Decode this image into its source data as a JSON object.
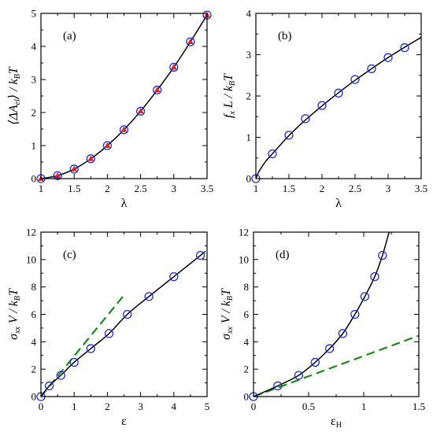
{
  "colors": {
    "axis": "#000000",
    "fit_line": "#000000",
    "marker_edge_circle": "#1f2fcc",
    "marker_fill_triangle": "#e0202a",
    "dashed_line": "#1a8a1a"
  },
  "chart_data": [
    {
      "id": "a",
      "type": "scatter",
      "panel_label": "(a)",
      "ylabel_parts": [
        "⟨ΔA",
        "el",
        "⟩ / k",
        "B",
        "T"
      ],
      "xlabel": "λ",
      "xlim": [
        1,
        3.5
      ],
      "ylim": [
        0,
        5
      ],
      "xticks": [
        1,
        1.5,
        2,
        2.5,
        3,
        3.5
      ],
      "yticks": [
        0,
        1,
        2,
        3,
        4,
        5
      ],
      "grid": false,
      "markers": [
        "circle-open",
        "triangle-filled"
      ],
      "series": [
        {
          "x": [
            1,
            1.25,
            1.5,
            1.75,
            2,
            2.25,
            2.5,
            2.75,
            3,
            3.25,
            3.5
          ],
          "y": [
            0,
            0.09,
            0.29,
            0.6,
            1.0,
            1.48,
            2.04,
            2.68,
            3.37,
            4.14,
            4.95
          ]
        }
      ],
      "fit_curve": {
        "x": [
          1,
          1.25,
          1.5,
          1.75,
          2,
          2.25,
          2.5,
          2.75,
          3,
          3.25,
          3.5
        ],
        "y": [
          0,
          0.09,
          0.29,
          0.6,
          1.0,
          1.48,
          2.04,
          2.68,
          3.37,
          4.14,
          4.95
        ]
      }
    },
    {
      "id": "b",
      "type": "scatter",
      "panel_label": "(b)",
      "ylabel_parts": [
        "f",
        "x",
        " L / k",
        "B",
        "T"
      ],
      "xlabel": "λ",
      "xlim": [
        1,
        3.5
      ],
      "ylim": [
        0,
        4
      ],
      "xticks": [
        1,
        1.5,
        2,
        2.5,
        3,
        3.5
      ],
      "yticks": [
        0,
        1,
        2,
        3,
        4
      ],
      "grid": false,
      "markers": [
        "circle-open"
      ],
      "series": [
        {
          "x": [
            1,
            1.25,
            1.5,
            1.75,
            2,
            2.25,
            2.5,
            2.75,
            3,
            3.25
          ],
          "y": [
            0,
            0.6,
            1.05,
            1.45,
            1.77,
            2.07,
            2.4,
            2.66,
            2.93,
            3.17
          ]
        }
      ],
      "fit_curve": {
        "x": [
          1,
          1.05,
          1.15,
          1.25,
          1.5,
          1.75,
          2,
          2.25,
          2.5,
          2.75,
          3,
          3.25,
          3.5
        ],
        "y": [
          0,
          0.18,
          0.42,
          0.6,
          1.04,
          1.42,
          1.76,
          2.08,
          2.38,
          2.66,
          2.93,
          3.18,
          3.42
        ]
      }
    },
    {
      "id": "c",
      "type": "scatter",
      "panel_label": "(c)",
      "ylabel_parts": [
        "σ",
        "xx",
        " V / k",
        "B",
        "T"
      ],
      "xlabel": "ε",
      "xlim": [
        0,
        5
      ],
      "ylim": [
        0,
        12
      ],
      "xticks": [
        0,
        1,
        2,
        3,
        4,
        5
      ],
      "yticks": [
        0,
        2,
        4,
        6,
        8,
        10,
        12
      ],
      "grid": false,
      "markers": [
        "circle-open"
      ],
      "series": [
        {
          "x": [
            0,
            0.25,
            0.6,
            1.0,
            1.5,
            2.05,
            2.6,
            3.25,
            4.0,
            4.8
          ],
          "y": [
            0,
            0.78,
            1.55,
            2.5,
            3.5,
            4.6,
            6.0,
            7.3,
            8.75,
            10.3
          ]
        }
      ],
      "fit_curve": {
        "x": [
          0,
          0.25,
          0.6,
          1.0,
          1.5,
          2.05,
          2.6,
          3.25,
          4.0,
          4.8,
          4.95
        ],
        "y": [
          0,
          0.78,
          1.55,
          2.5,
          3.5,
          4.6,
          6.0,
          7.3,
          8.75,
          10.3,
          10.6
        ]
      },
      "dashed_line": {
        "x": [
          0,
          2.5
        ],
        "y": [
          0,
          7.4
        ]
      }
    },
    {
      "id": "d",
      "type": "scatter",
      "panel_label": "(d)",
      "ylabel_parts": [
        "σ",
        "xx",
        " V / k",
        "B",
        "T"
      ],
      "xlabel_parts": [
        "ε",
        "H"
      ],
      "xlim": [
        0,
        1.5
      ],
      "ylim": [
        0,
        12
      ],
      "xticks": [
        0,
        0.5,
        1,
        1.5
      ],
      "yticks": [
        0,
        2,
        4,
        6,
        8,
        10,
        12
      ],
      "grid": false,
      "markers": [
        "circle-open"
      ],
      "series": [
        {
          "x": [
            0,
            0.22,
            0.41,
            0.56,
            0.69,
            0.81,
            0.92,
            1.01,
            1.1,
            1.17
          ],
          "y": [
            0,
            0.78,
            1.55,
            2.5,
            3.5,
            4.6,
            6.0,
            7.3,
            8.75,
            10.3
          ]
        }
      ],
      "fit_curve": {
        "x": [
          0,
          0.22,
          0.41,
          0.56,
          0.69,
          0.81,
          0.92,
          1.01,
          1.1,
          1.17,
          1.23
        ],
        "y": [
          0,
          0.78,
          1.55,
          2.5,
          3.5,
          4.6,
          6.0,
          7.3,
          8.75,
          10.3,
          12.0
        ]
      },
      "dashed_line": {
        "x": [
          0,
          1.5
        ],
        "y": [
          0,
          4.45
        ]
      }
    }
  ]
}
